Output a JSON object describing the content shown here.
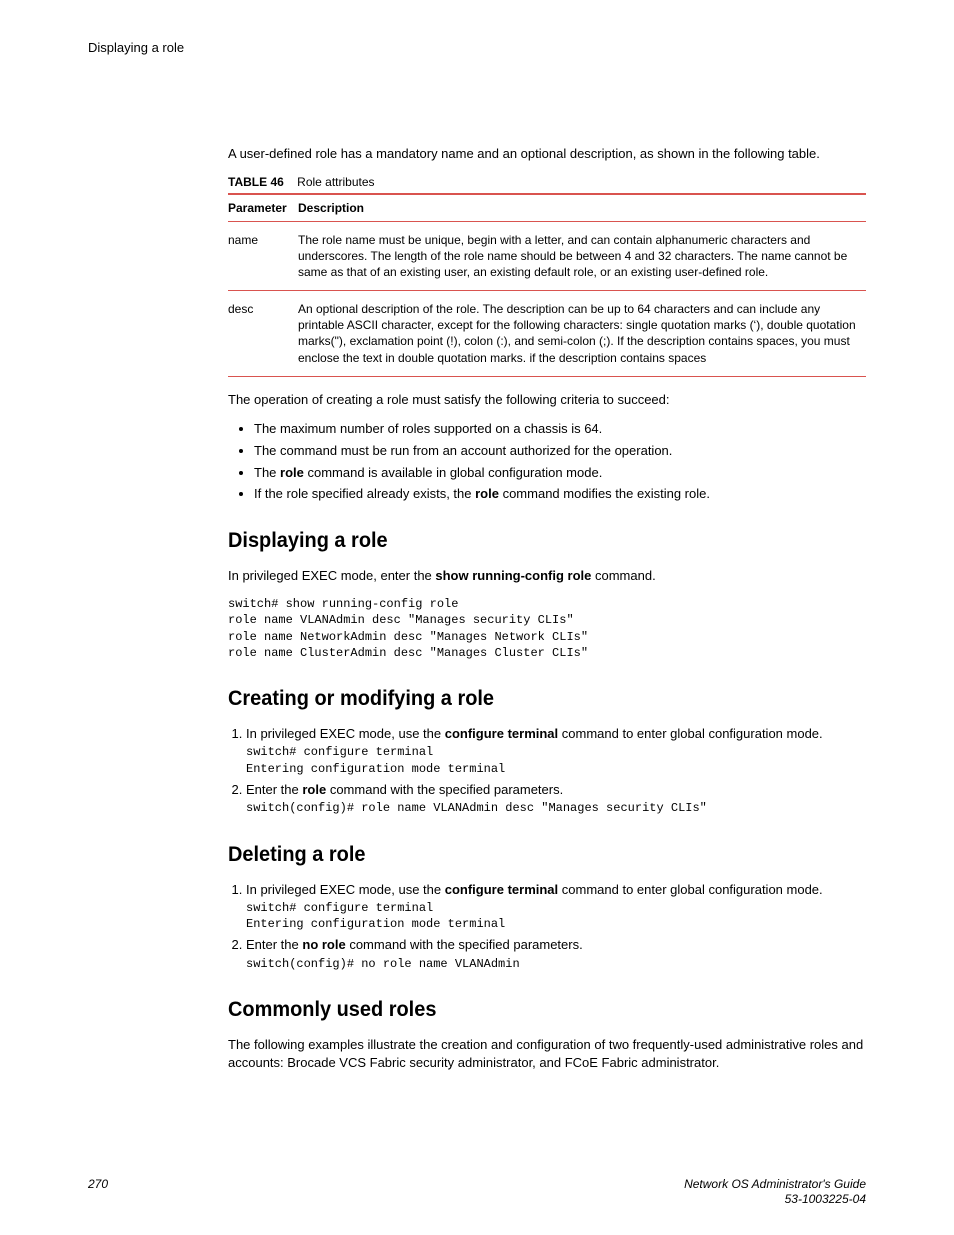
{
  "header": {
    "label": "Displaying a role"
  },
  "intro": "A user-defined role has a mandatory name and an optional description, as shown in the following table.",
  "table": {
    "caption_label": "TABLE 46",
    "caption_text": "Role attributes",
    "col1": "Parameter",
    "col2": "Description",
    "rows": [
      {
        "param": "name",
        "desc": "The role name must be unique, begin with a letter, and can contain alphanumeric characters and underscores. The length of the role name should be between 4 and 32 characters. The name cannot be same as that of an existing user, an existing default role, or an existing user-defined role."
      },
      {
        "param": "desc",
        "desc": "An optional description of the role. The description can be up to 64 characters and can include any printable ASCII character, except for the following characters: single quotation marks (‘), double quotation marks(\"), exclamation point (!), colon (:), and semi-colon (;). If the description contains spaces, you must enclose the text in double quotation marks. if the description contains spaces"
      }
    ]
  },
  "criteria_intro": "The operation of creating a role must satisfy the following criteria to succeed:",
  "criteria": {
    "b1": "The maximum number of roles supported on a chassis is 64.",
    "b2": "The command must be run from an account authorized for the operation.",
    "b3a": "The ",
    "b3b": "role",
    "b3c": " command is available in global configuration mode.",
    "b4a": "If the role specified already exists, the ",
    "b4b": "role",
    "b4c": " command modifies the existing role."
  },
  "s1": {
    "heading": "Displaying a role",
    "intro_a": "In privileged EXEC mode, enter the ",
    "intro_b": "show running-config role",
    "intro_c": " command.",
    "code": "switch# show running-config role\nrole name VLANAdmin desc \"Manages security CLIs\"\nrole name NetworkAdmin desc \"Manages Network CLIs\"\nrole name ClusterAdmin desc \"Manages Cluster CLIs\""
  },
  "s2": {
    "heading": "Creating or modifying a role",
    "step1a": "In privileged EXEC mode, use the ",
    "step1b": "configure terminal",
    "step1c": " command to enter global configuration mode.",
    "code1": "switch# configure terminal\nEntering configuration mode terminal",
    "step2a": "Enter the ",
    "step2b": "role",
    "step2c": " command with the specified parameters.",
    "code2": "switch(config)# role name VLANAdmin desc \"Manages security CLIs\""
  },
  "s3": {
    "heading": "Deleting a role",
    "step1a": "In privileged EXEC mode, use the ",
    "step1b": "configure terminal",
    "step1c": " command to enter global configuration mode.",
    "code1": "switch# configure terminal\nEntering configuration mode terminal",
    "step2a": "Enter the ",
    "step2b": "no role",
    "step2c": " command with the specified parameters.",
    "code2": "switch(config)# no role name VLANAdmin"
  },
  "s4": {
    "heading": "Commonly used roles",
    "intro": "The following examples illustrate the creation and configuration of two frequently-used administrative roles and accounts: Brocade VCS Fabric security administrator, and FCoE Fabric administrator."
  },
  "footer": {
    "page": "270",
    "guide": "Network OS Administrator's Guide",
    "doc": "53-1003225-04"
  }
}
